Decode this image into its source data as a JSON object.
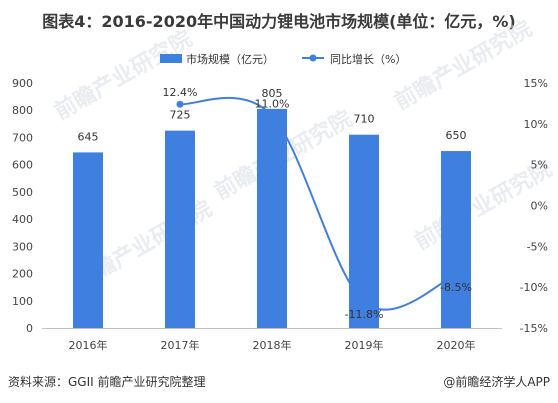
{
  "title": "图表4：2016-2020年中国动力锂电池市场规模(单位：亿元，%)",
  "source": "资料来源：GGII 前瞻产业研究院整理",
  "credit": "@前瞻经济学人APP",
  "watermark_text": "前瞻产业研究院",
  "colors": {
    "bar": "#3f7fe0",
    "line": "#3f7fe0"
  },
  "chart_data": {
    "type": "bar",
    "categories": [
      "2016年",
      "2017年",
      "2018年",
      "2019年",
      "2020年"
    ],
    "series": [
      {
        "name": "市场规模（亿元）",
        "type": "bar",
        "axis": "left",
        "values": [
          645,
          725,
          805,
          710,
          650
        ],
        "labels": [
          "645",
          "725",
          "805",
          "710",
          "650"
        ]
      },
      {
        "name": "同比增长（%）",
        "type": "line",
        "axis": "right",
        "values": [
          null,
          12.4,
          11.0,
          -11.8,
          -8.5
        ],
        "labels": [
          "",
          "12.4%",
          "11.0%",
          "-11.8%",
          "-8.5%"
        ]
      }
    ],
    "y_left": {
      "min": 0,
      "max": 900,
      "step": 100,
      "ticks": [
        "0",
        "100",
        "200",
        "300",
        "400",
        "500",
        "600",
        "700",
        "800",
        "900"
      ]
    },
    "y_right": {
      "min": -15,
      "max": 15,
      "step": 5,
      "ticks": [
        "-15%",
        "-10%",
        "-5%",
        "0%",
        "5%",
        "10%",
        "15%"
      ]
    },
    "legend_position": "top-center",
    "grid": false
  }
}
